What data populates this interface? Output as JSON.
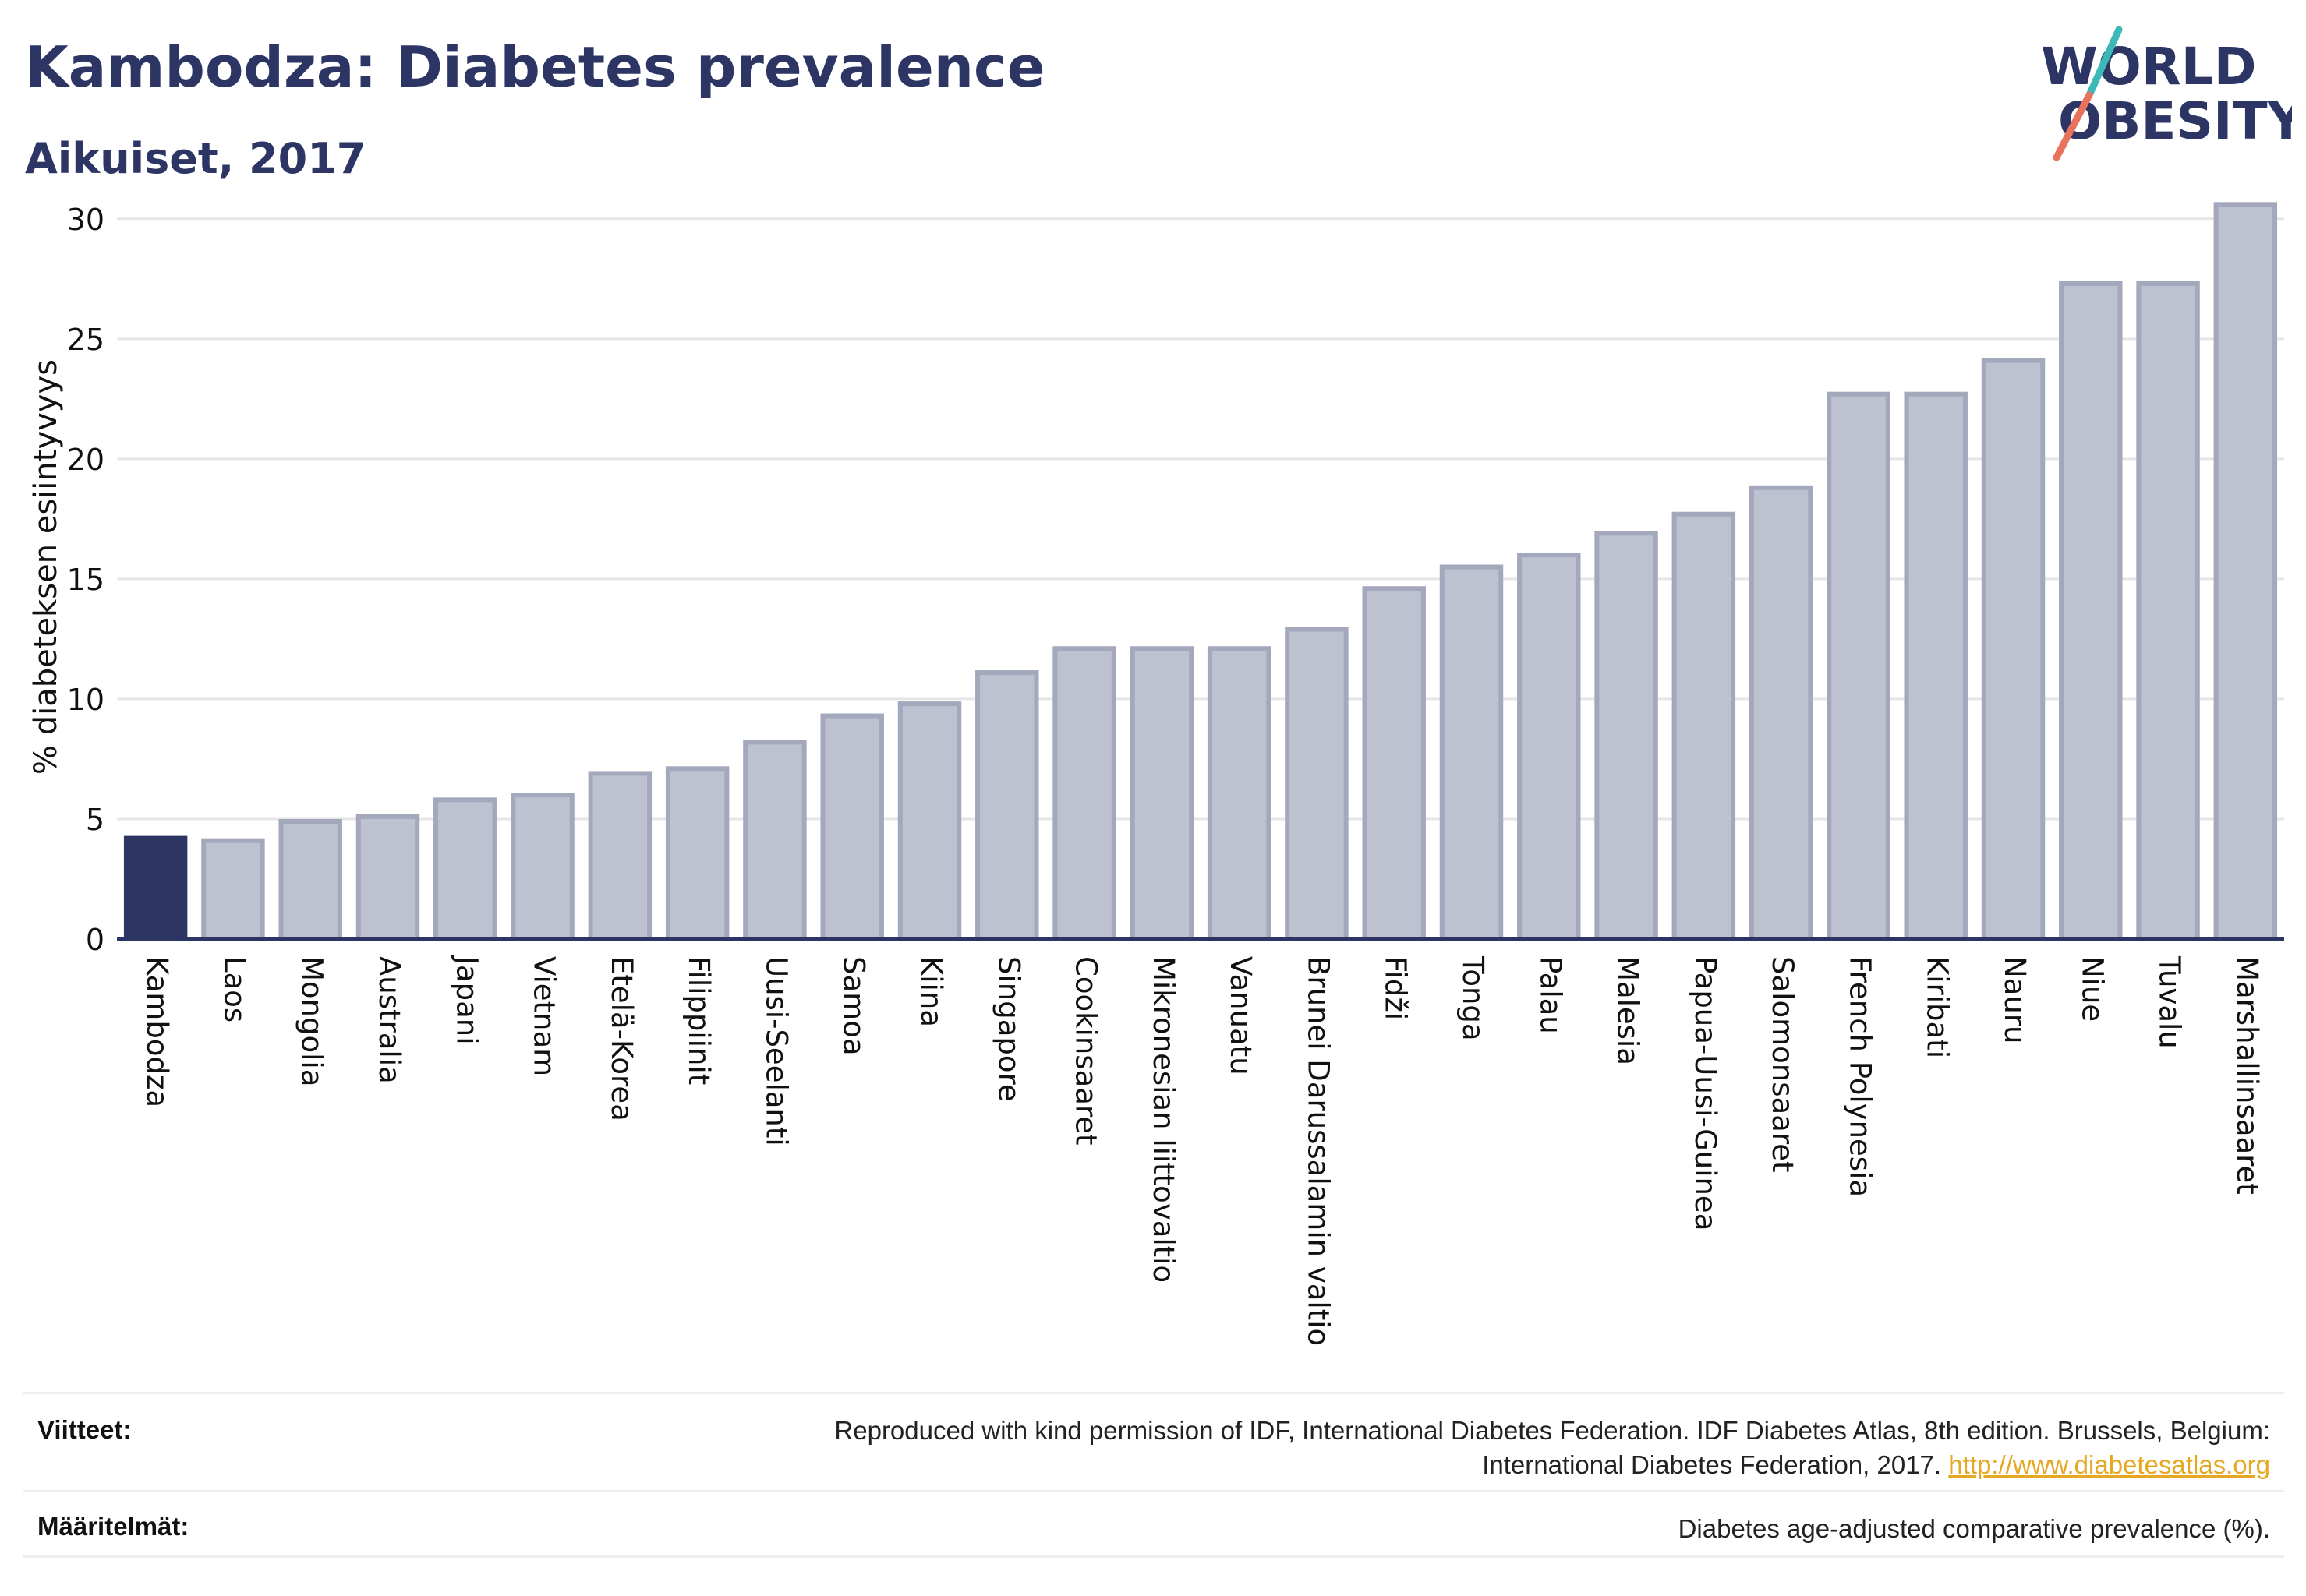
{
  "header": {
    "title": "Kambodza: Diabetes prevalence",
    "subtitle": "Aikuiset, 2017"
  },
  "logo": {
    "line1": "WORLD",
    "line2": "OBESITY",
    "colors": {
      "text": "#2c3564",
      "slash_top": "#3bb8b8",
      "slash_bottom": "#e8725c"
    }
  },
  "chart_data": {
    "type": "bar",
    "ylabel": "% diabeteksen esiintyvyys",
    "ylim": [
      0,
      31
    ],
    "yticks": [
      0,
      5,
      10,
      15,
      20,
      25,
      30
    ],
    "grid": true,
    "highlight_category": "Kambodza",
    "colors": {
      "highlight": "#2c3564",
      "bar_fill": "#bec1cf",
      "bar_stroke": "#a3a8bd",
      "axis": "#2c3564",
      "grid": "#e6e6e6"
    },
    "categories": [
      "Kambodza",
      "Laos",
      "Mongolia",
      "Australia",
      "Japani",
      "Vietnam",
      "Etelä-Korea",
      "Filippiinit",
      "Uusi-Seelanti",
      "Samoa",
      "Kiina",
      "Singapore",
      "Cookinsaaret",
      "Mikronesian liittovaltio",
      "Vanuatu",
      "Brunei Darussalamin valtio",
      "Fidži",
      "Tonga",
      "Palau",
      "Malesia",
      "Papua-Uusi-Guinea",
      "Salomonsaaret",
      "French Polynesia",
      "Kiribati",
      "Nauru",
      "Niue",
      "Tuvalu",
      "Marshallinsaaret"
    ],
    "values": [
      4.2,
      4.1,
      4.9,
      5.1,
      5.8,
      6.0,
      6.9,
      7.1,
      8.2,
      9.3,
      9.8,
      11.1,
      12.1,
      12.1,
      12.1,
      12.9,
      14.6,
      15.5,
      16.0,
      16.9,
      17.7,
      18.8,
      22.7,
      22.7,
      24.1,
      27.3,
      27.3,
      30.6
    ]
  },
  "footer": {
    "sources_label": "Viitteet:",
    "sources_text_line1": "Reproduced with kind permission of IDF, International Diabetes Federation. IDF Diabetes Atlas, 8th edition. Brussels, Belgium:",
    "sources_text_line2": "International Diabetes Federation, 2017.",
    "sources_link": "http://www.diabetesatlas.org",
    "definitions_label": "Määritelmät:",
    "definitions_text": "Diabetes age-adjusted comparative prevalence (%)."
  }
}
